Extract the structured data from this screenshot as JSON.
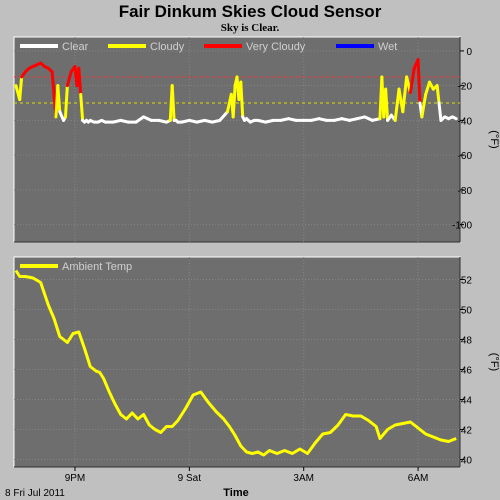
{
  "page": {
    "title": "Fair Dinkum Skies Cloud Sensor",
    "status": "Sky is Clear."
  },
  "colors": {
    "panel_bg": "#6e6e6e",
    "outer_bg": "#c0c0c0",
    "clear": "#ffffff",
    "cloudy": "#ffff00",
    "very_cloudy": "#ff0000",
    "wet": "#0000ff",
    "ambient": "#ffff00",
    "very_cloudy_threshold": "#ff3030",
    "cloudy_threshold": "#e0e000"
  },
  "chart_data": [
    {
      "type": "line",
      "id": "sky",
      "ylabel": "(°F)",
      "ylim": [
        -110,
        8
      ],
      "yticks": [
        0,
        -20,
        -40,
        -60,
        -80,
        -100
      ],
      "xlim": [
        19.4,
        31.1
      ],
      "grid": true,
      "legend": [
        {
          "label": "Clear",
          "color": "#ffffff"
        },
        {
          "label": "Cloudy",
          "color": "#ffff00"
        },
        {
          "label": "Very Cloudy",
          "color": "#ff0000"
        },
        {
          "label": "Wet",
          "color": "#0000ff"
        }
      ],
      "thresholds": [
        {
          "value": -15,
          "color": "#ff3030"
        },
        {
          "value": -30,
          "color": "#e0e000"
        }
      ],
      "cloudy_limit": -30,
      "very_cloudy_limit": -15,
      "x": [
        19.45,
        19.55,
        19.6,
        19.7,
        19.8,
        19.9,
        20.0,
        20.1,
        20.2,
        20.3,
        20.4,
        20.5,
        20.55,
        20.6,
        20.7,
        20.75,
        20.8,
        20.9,
        21.0,
        21.05,
        21.1,
        21.15,
        21.2,
        21.25,
        21.3,
        21.35,
        21.4,
        21.5,
        21.6,
        21.7,
        21.8,
        22.0,
        22.2,
        22.4,
        22.6,
        22.8,
        23.0,
        23.2,
        23.4,
        23.5,
        23.55,
        23.6,
        23.65,
        23.7,
        23.8,
        24.0,
        24.2,
        24.4,
        24.6,
        24.8,
        25.0,
        25.1,
        25.15,
        25.2,
        25.25,
        25.3,
        25.35,
        25.4,
        25.45,
        25.5,
        25.55,
        25.6,
        25.7,
        25.8,
        26.0,
        26.2,
        26.4,
        26.6,
        26.8,
        27.0,
        27.2,
        27.4,
        27.6,
        27.8,
        28.0,
        28.2,
        28.4,
        28.6,
        28.8,
        29.0,
        29.05,
        29.1,
        29.15,
        29.2,
        29.3,
        29.4,
        29.5,
        29.6,
        29.7,
        29.8,
        29.9,
        30.0,
        30.05,
        30.1,
        30.2,
        30.3,
        30.4,
        30.5,
        30.55,
        30.6,
        30.7,
        30.8,
        30.9,
        31.0
      ],
      "values": [
        -20,
        -28,
        -15,
        -12,
        -10,
        -9,
        -8,
        -7,
        -9,
        -10,
        -12,
        -38,
        -20,
        -35,
        -40,
        -38,
        -20,
        -12,
        -9,
        -20,
        -10,
        -25,
        -40,
        -41,
        -40,
        -41,
        -40,
        -41,
        -41,
        -40,
        -41,
        -41,
        -40,
        -41,
        -41,
        -38,
        -40,
        -40,
        -41,
        -40,
        -20,
        -40,
        -40,
        -41,
        -41,
        -40,
        -41,
        -40,
        -41,
        -40,
        -35,
        -25,
        -38,
        -20,
        -15,
        -28,
        -18,
        -38,
        -40,
        -39,
        -40,
        -41,
        -40,
        -40,
        -41,
        -40,
        -40,
        -39,
        -40,
        -40,
        -40,
        -39,
        -40,
        -40,
        -39,
        -40,
        -39,
        -38,
        -40,
        -39,
        -15,
        -38,
        -22,
        -40,
        -37,
        -40,
        -22,
        -35,
        -15,
        -24,
        -10,
        -5,
        -30,
        -38,
        -25,
        -18,
        -22,
        -20,
        -30,
        -40,
        -38,
        -39,
        -38,
        -39
      ]
    },
    {
      "type": "line",
      "id": "ambient",
      "ylabel": "(°F)",
      "ylim": [
        39.5,
        53.5
      ],
      "yticks": [
        40,
        42,
        44,
        46,
        48,
        50,
        52
      ],
      "xlim": [
        19.4,
        31.1
      ],
      "grid": true,
      "legend": [
        {
          "label": "Ambient Temp",
          "color": "#ffff00"
        }
      ],
      "series": [
        {
          "name": "Ambient Temp",
          "color": "#ffff00",
          "x": [
            19.45,
            19.55,
            19.7,
            19.9,
            20.1,
            20.3,
            20.45,
            20.6,
            20.8,
            20.95,
            21.1,
            21.25,
            21.4,
            21.55,
            21.65,
            21.75,
            21.9,
            22.05,
            22.2,
            22.35,
            22.5,
            22.65,
            22.8,
            22.95,
            23.1,
            23.25,
            23.4,
            23.55,
            23.7,
            23.9,
            24.1,
            24.3,
            24.5,
            24.7,
            24.9,
            25.05,
            25.2,
            25.35,
            25.5,
            25.65,
            25.8,
            25.95,
            26.1,
            26.3,
            26.5,
            26.7,
            26.9,
            27.1,
            27.3,
            27.5,
            27.7,
            27.9,
            28.1,
            28.3,
            28.5,
            28.7,
            28.9,
            29.0,
            29.2,
            29.4,
            29.6,
            29.8,
            30.0,
            30.2,
            30.4,
            30.6,
            30.8,
            31.0
          ],
          "values": [
            52.6,
            52.2,
            52.2,
            52.1,
            51.8,
            50.3,
            49.4,
            48.2,
            47.8,
            48.4,
            48.5,
            47.4,
            46.2,
            45.9,
            45.8,
            45.4,
            44.5,
            43.7,
            43.0,
            42.7,
            43.1,
            42.7,
            43.0,
            42.3,
            42.0,
            41.8,
            42.2,
            42.2,
            42.6,
            43.4,
            44.3,
            44.5,
            43.8,
            43.2,
            42.7,
            42.2,
            41.6,
            40.9,
            40.5,
            40.4,
            40.5,
            40.3,
            40.6,
            40.4,
            40.6,
            40.4,
            40.7,
            40.4,
            41.1,
            41.7,
            41.8,
            42.3,
            43.0,
            42.9,
            42.9,
            42.6,
            42.2,
            41.4,
            42.0,
            42.3,
            42.4,
            42.5,
            42.1,
            41.7,
            41.5,
            41.3,
            41.2,
            41.4
          ]
        }
      ]
    }
  ],
  "x_axis": {
    "label": "Time",
    "date_label": "8 Fri Jul 2011",
    "ticks": [
      {
        "x": 21.0,
        "label": "9PM"
      },
      {
        "x": 24.0,
        "label": "9 Sat"
      },
      {
        "x": 27.0,
        "label": "3AM"
      },
      {
        "x": 30.0,
        "label": "6AM"
      }
    ]
  }
}
